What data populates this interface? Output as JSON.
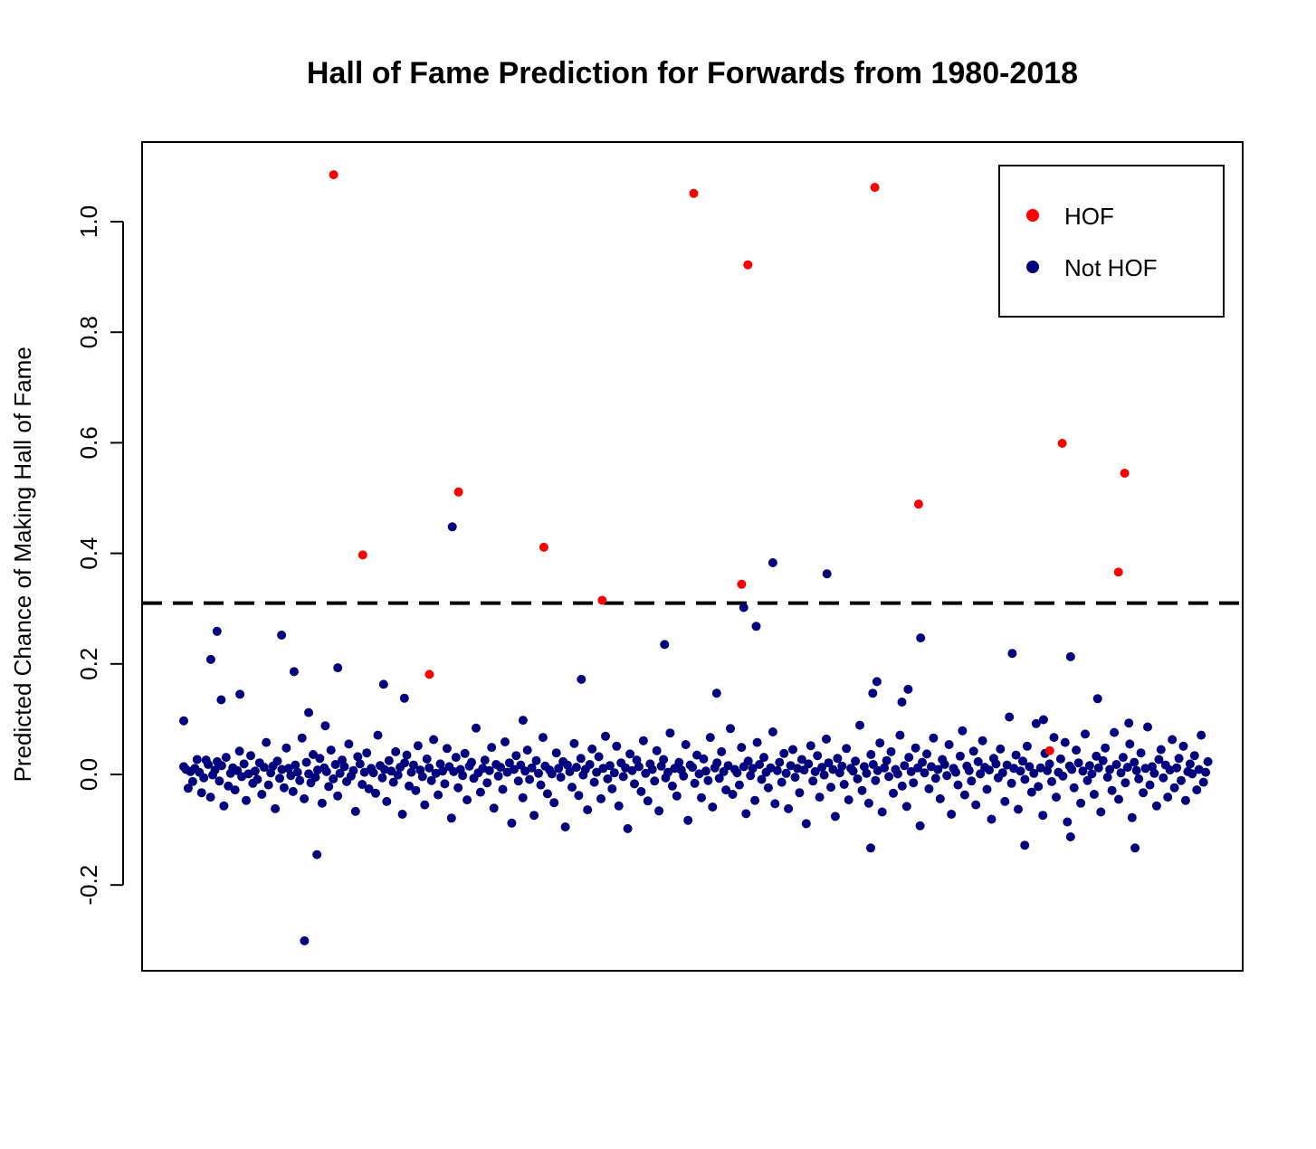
{
  "chart_data": {
    "type": "scatter",
    "title": "Hall of Fame Prediction for Forwards from 1980-2018",
    "xlabel": "",
    "ylabel": "Predicted Chance of Making Hall of Fame",
    "x_axis_shown": false,
    "ylim": [
      -0.35,
      1.15
    ],
    "xlim": [
      -0.5,
      492.5
    ],
    "y_ticks": [
      -0.2,
      0.0,
      0.2,
      0.4,
      0.6,
      0.8,
      1.0
    ],
    "y_tick_labels": [
      "-0.2",
      "0.0",
      "0.2",
      "0.4",
      "0.6",
      "0.8",
      "1.0"
    ],
    "threshold": 0.31,
    "threshold_style": "dashed",
    "grid": false,
    "legend": {
      "position": "top-right",
      "entries": [
        "HOF",
        "Not HOF"
      ]
    },
    "colors": {
      "HOF": "#ff0000",
      "Not HOF": "#00007f"
    },
    "series": [
      {
        "name": "HOF",
        "color": "#ff0000",
        "points": [
          {
            "x": 72,
            "y": 1.085
          },
          {
            "x": 86,
            "y": 0.397
          },
          {
            "x": 118,
            "y": 0.181
          },
          {
            "x": 132,
            "y": 0.511
          },
          {
            "x": 173,
            "y": 0.411
          },
          {
            "x": 201,
            "y": 0.315
          },
          {
            "x": 245,
            "y": 1.051
          },
          {
            "x": 268,
            "y": 0.344
          },
          {
            "x": 271,
            "y": 0.922
          },
          {
            "x": 332,
            "y": 1.062
          },
          {
            "x": 353,
            "y": 0.489
          },
          {
            "x": 416,
            "y": 0.043
          },
          {
            "x": 422,
            "y": 0.599
          },
          {
            "x": 449,
            "y": 0.366
          },
          {
            "x": 452,
            "y": 0.545
          }
        ]
      },
      {
        "name": "Not HOF",
        "color": "#00007f",
        "outliers": [
          {
            "x": 0,
            "y": 0.097
          },
          {
            "x": 13,
            "y": 0.208
          },
          {
            "x": 16,
            "y": 0.259
          },
          {
            "x": 18,
            "y": 0.135
          },
          {
            "x": 27,
            "y": 0.145
          },
          {
            "x": 47,
            "y": 0.252
          },
          {
            "x": 53,
            "y": 0.186
          },
          {
            "x": 58,
            "y": -0.301
          },
          {
            "x": 60,
            "y": 0.112
          },
          {
            "x": 64,
            "y": -0.145
          },
          {
            "x": 68,
            "y": 0.088
          },
          {
            "x": 74,
            "y": 0.193
          },
          {
            "x": 96,
            "y": 0.163
          },
          {
            "x": 106,
            "y": 0.138
          },
          {
            "x": 129,
            "y": 0.448
          },
          {
            "x": 163,
            "y": 0.098
          },
          {
            "x": 191,
            "y": 0.172
          },
          {
            "x": 231,
            "y": 0.235
          },
          {
            "x": 256,
            "y": 0.147
          },
          {
            "x": 269,
            "y": 0.302
          },
          {
            "x": 275,
            "y": 0.268
          },
          {
            "x": 283,
            "y": 0.383
          },
          {
            "x": 309,
            "y": 0.363
          },
          {
            "x": 330,
            "y": -0.133
          },
          {
            "x": 333,
            "y": 0.168
          },
          {
            "x": 331,
            "y": 0.147
          },
          {
            "x": 345,
            "y": 0.131
          },
          {
            "x": 348,
            "y": 0.154
          },
          {
            "x": 354,
            "y": 0.247
          },
          {
            "x": 398,
            "y": 0.219
          },
          {
            "x": 404,
            "y": -0.128
          },
          {
            "x": 413,
            "y": 0.099
          },
          {
            "x": 426,
            "y": 0.213
          },
          {
            "x": 426,
            "y": -0.113
          },
          {
            "x": 439,
            "y": 0.137
          },
          {
            "x": 454,
            "y": 0.093
          },
          {
            "x": 457,
            "y": -0.133
          }
        ],
        "bulk": {
          "count": 460,
          "y_values": [
            0.014,
            0.009,
            -0.025,
            0.005,
            -0.013,
            0.011,
            0.027,
            0.004,
            -0.033,
            -0.006,
            0.026,
            0.018,
            -0.041,
            -0.001,
            0.008,
            0.023,
            -0.012,
            0.016,
            -0.057,
            0.031,
            -0.021,
            0.002,
            0.012,
            -0.028,
            0.007,
            0.042,
            -0.004,
            0.019,
            -0.047,
            0.001,
            0.034,
            -0.016,
            0.006,
            -0.009,
            0.021,
            -0.036,
            0.013,
            0.058,
            -0.019,
            0.003,
            0.015,
            -0.062,
            0.024,
            -0.007,
            0.009,
            -0.024,
            0.048,
            0.011,
            -0.002,
            -0.031,
            0.017,
            0.004,
            -0.011,
            0.066,
            -0.044,
            0.022,
            0.001,
            -0.015,
            0.036,
            -0.005,
            0.008,
            0.029,
            -0.052,
            0.012,
            0.005,
            -0.022,
            0.044,
            -0.008,
            0.018,
            -0.039,
            0.002,
            0.026,
            0.014,
            -0.013,
            0.055,
            -0.003,
            0.007,
            -0.067,
            0.032,
            0.019,
            -0.018,
            0.004,
            0.039,
            -0.026,
            0.011,
            0.003,
            -0.034,
            0.071,
            0.016,
            -0.006,
            0.009,
            -0.049,
            0.025,
            0.006,
            -0.014,
            0.041,
            -0.001,
            0.013,
            -0.072,
            0.021,
            0.035,
            -0.021,
            0.004,
            0.017,
            -0.029,
            0.052,
            0.008,
            -0.004,
            -0.055,
            0.028,
            0.012,
            -0.011,
            0.063,
            0.002,
            -0.037,
            0.019,
            0.006,
            -0.017,
            0.047,
            0.014,
            -0.079,
            0.005,
            0.031,
            -0.024,
            0.009,
            -0.002,
            0.038,
            -0.046,
            0.015,
            0.022,
            -0.007,
            0.084,
            0.003,
            -0.032,
            0.011,
            0.026,
            -0.015,
            0.007,
            0.049,
            -0.061,
            0.018,
            -0.003,
            0.013,
            -0.027,
            0.059,
            0.004,
            0.021,
            -0.088,
            0.009,
            0.034,
            -0.012,
            0.017,
            -0.042,
            0.006,
            0.044,
            -0.009,
            0.012,
            -0.074,
            0.025,
            0.002,
            -0.019,
            0.067,
            0.015,
            -0.035,
            0.008,
            0.001,
            -0.051,
            0.039,
            0.011,
            -0.005,
            0.023,
            -0.095,
            0.017,
            0.005,
            -0.023,
            0.056,
            0.013,
            -0.038,
            0.029,
            -0.001,
            0.009,
            -0.064,
            0.018,
            0.046,
            -0.014,
            0.004,
            0.032,
            -0.044,
            0.011,
            0.069,
            -0.008,
            0.016,
            -0.026,
            0.003,
            0.051,
            -0.057,
            0.021,
            -0.004,
            0.012,
            -0.098,
            0.037,
            0.007,
            -0.017,
            0.026,
            0.014,
            -0.031,
            0.061,
            0.002,
            -0.048,
            0.019,
            0.009,
            -0.012,
            0.043,
            -0.066,
            0.015,
            0.027,
            -0.006,
            0.004,
            0.075,
            -0.021,
            0.011,
            -0.039,
            0.022,
            0.008,
            -0.003,
            0.054,
            -0.083,
            0.017,
            0.013,
            -0.016,
            0.035,
            0.001,
            -0.042,
            0.028,
            0.006,
            -0.011,
            0.067,
            -0.059,
            0.012,
            0.021,
            -0.007,
            0.041,
            0.005,
            -0.028,
            0.016,
            0.083,
            -0.036,
            0.009,
            0.003,
            -0.019,
            0.049,
            0.014,
            -0.071,
            0.024,
            -0.002,
            0.011,
            -0.047,
            0.058,
            0.018,
            -0.009,
            0.031,
            0.004,
            -0.024,
            0.012,
            0.077,
            -0.053,
            0.007,
            0.022,
            -0.014,
            0.038,
            0.002,
            -0.062,
            0.016,
            0.045,
            -0.005,
            0.011,
            -0.033,
            0.027,
            0.008,
            -0.089,
            0.019,
            0.052,
            -0.012,
            0.005,
            0.034,
            -0.041,
            0.013,
            -0.001,
            0.064,
            0.021,
            -0.023,
            0.009,
            -0.076,
            0.029,
            0.003,
            0.015,
            -0.018,
            0.047,
            -0.046,
            0.011,
            0.006,
            0.024,
            -0.008,
            0.089,
            -0.029,
            0.014,
            0.002,
            -0.052,
            0.036,
            0.018,
            -0.011,
            0.007,
            0.057,
            -0.068,
            0.012,
            0.025,
            -0.004,
            0.041,
            -0.034,
            0.009,
            0.001,
            0.071,
            -0.021,
            0.016,
            -0.058,
            0.031,
            0.005,
            -0.015,
            0.048,
            0.012,
            -0.093,
            0.022,
            0.003,
            0.037,
            -0.026,
            0.014,
            0.066,
            -0.007,
            0.009,
            -0.044,
            0.027,
            0.018,
            -0.002,
            0.054,
            -0.072,
            0.011,
            0.004,
            -0.019,
            0.033,
            0.079,
            -0.037,
            0.015,
            0.007,
            -0.012,
            0.042,
            -0.055,
            0.023,
            0.001,
            0.061,
            0.013,
            -0.027,
            0.008,
            -0.081,
            0.029,
            0.019,
            -0.006,
            0.046,
            0.003,
            -0.049,
            0.017,
            0.104,
            -0.016,
            0.011,
            0.035,
            -0.063,
            0.006,
            0.024,
            -0.009,
            0.051,
            0.014,
            -0.032,
            0.002,
            0.092,
            -0.022,
            0.012,
            -0.074,
            0.038,
            0.007,
            0.019,
            -0.013,
            0.067,
            -0.041,
            0.004,
            0.028,
            -0.003,
            0.058,
            -0.086,
            0.015,
            0.009,
            -0.024,
            0.044,
            0.021,
            -0.052,
            0.006,
            0.073,
            -0.011,
            0.016,
            0.001,
            -0.036,
            0.033,
            0.012,
            -0.068,
            0.025,
            0.048,
            -0.005,
            0.009,
            -0.029,
            0.076,
            0.018,
            -0.045,
            0.003,
            0.031,
            -0.015,
            0.013,
            0.055,
            -0.078,
            0.022,
            0.007,
            -0.008,
            0.039,
            -0.033,
            0.011,
            0.086,
            -0.019,
            0.014,
            0.002,
            -0.057,
            0.027,
            0.045,
            -0.006,
            0.017,
            -0.041,
            0.008,
            0.063,
            -0.024,
            0.012,
            0.029,
            -0.011,
            0.051,
            -0.047,
            0.005,
            0.019,
            0.001,
            0.034,
            -0.028,
            0.009,
            0.071,
            -0.014,
            0.004,
            0.023,
            -0.053,
            0.011,
            0.041,
            -0.002,
            0.016,
            0.007,
            -0.021,
            0.006,
            0.009,
            0.012
          ]
        }
      }
    ]
  }
}
